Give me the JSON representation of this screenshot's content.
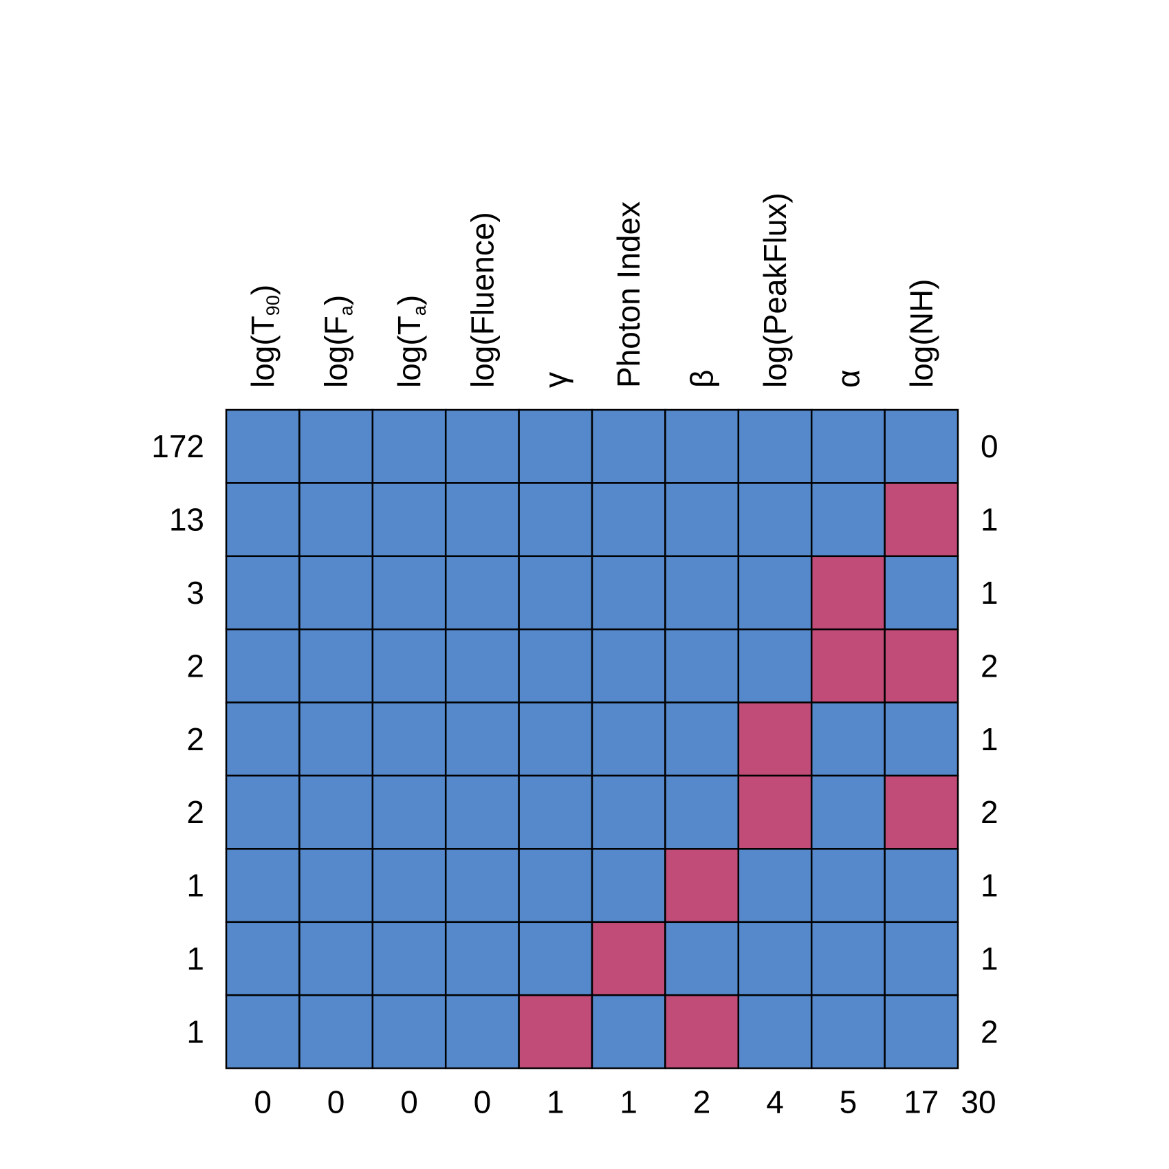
{
  "chart_data": {
    "type": "heatmap",
    "title": "",
    "xlabel": "",
    "ylabel": "",
    "variables": [
      {
        "base": "log(T",
        "sub": "90",
        "tail": ")"
      },
      {
        "base": "log(F",
        "sub": "a",
        "tail": ")"
      },
      {
        "base": "log(T",
        "sub": "a",
        "tail": ")"
      },
      {
        "base": "log(Fluence)",
        "sub": "",
        "tail": ""
      },
      {
        "base": "γ",
        "sub": "",
        "tail": ""
      },
      {
        "base": "Photon Index",
        "sub": "",
        "tail": ""
      },
      {
        "base": "β",
        "sub": "",
        "tail": ""
      },
      {
        "base": "log(PeakFlux)",
        "sub": "",
        "tail": ""
      },
      {
        "base": "α",
        "sub": "",
        "tail": ""
      },
      {
        "base": "log(NH)",
        "sub": "",
        "tail": ""
      }
    ],
    "column_missing_counts": [
      "0",
      "0",
      "0",
      "0",
      "1",
      "1",
      "2",
      "4",
      "5",
      "17"
    ],
    "total_missing": "30",
    "row_frequencies": [
      "172",
      "13",
      "3",
      "2",
      "2",
      "2",
      "1",
      "1",
      "1"
    ],
    "row_missing_counts": [
      "0",
      "1",
      "1",
      "2",
      "1",
      "2",
      "1",
      "1",
      "2"
    ],
    "pattern_matrix": [
      [
        1,
        1,
        1,
        1,
        1,
        1,
        1,
        1,
        1,
        1
      ],
      [
        1,
        1,
        1,
        1,
        1,
        1,
        1,
        1,
        1,
        0
      ],
      [
        1,
        1,
        1,
        1,
        1,
        1,
        1,
        1,
        0,
        1
      ],
      [
        1,
        1,
        1,
        1,
        1,
        1,
        1,
        1,
        0,
        0
      ],
      [
        1,
        1,
        1,
        1,
        1,
        1,
        1,
        0,
        1,
        1
      ],
      [
        1,
        1,
        1,
        1,
        1,
        1,
        1,
        0,
        1,
        0
      ],
      [
        1,
        1,
        1,
        1,
        1,
        1,
        0,
        1,
        1,
        1
      ],
      [
        1,
        1,
        1,
        1,
        1,
        0,
        1,
        1,
        1,
        1
      ],
      [
        1,
        1,
        1,
        1,
        0,
        1,
        0,
        1,
        1,
        1
      ]
    ],
    "colors": {
      "observed": "#5589cb",
      "missing": "#c04c77",
      "border": "#000000"
    },
    "legend": "none",
    "grid": true
  }
}
